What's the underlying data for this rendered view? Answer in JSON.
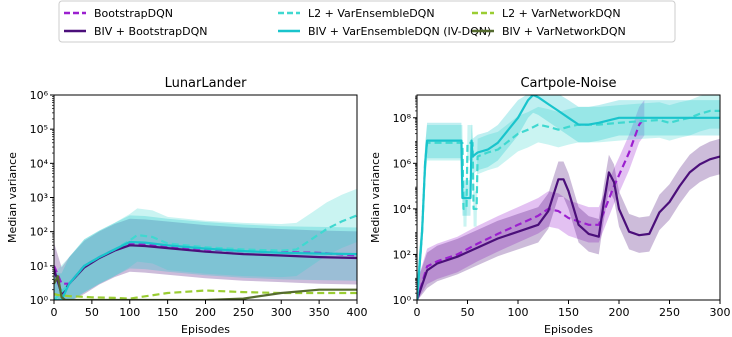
{
  "legend": {
    "placement": "top-center",
    "entries": [
      {
        "label": "BootstrapDQN",
        "color": "#9b1fcf",
        "dash": "dashed"
      },
      {
        "label": "BIV + BootstrapDQN",
        "color": "#4b0f7a",
        "dash": "solid"
      },
      {
        "label": "L2 + VarEnsembleDQN",
        "color": "#3fd8d0",
        "dash": "dashed"
      },
      {
        "label": "BIV + VarEnsembleDQN (IV-DQN)",
        "color": "#19c4cc",
        "dash": "solid"
      },
      {
        "label": "L2 + VarNetworkDQN",
        "color": "#9acd32",
        "dash": "dashed"
      },
      {
        "label": "BIV + VarNetworkDQN",
        "color": "#556b2f",
        "dash": "solid"
      }
    ]
  },
  "chart_data": [
    {
      "type": "line",
      "title": "LunarLander",
      "xlabel": "Episodes",
      "ylabel": "Median variance",
      "xlim": [
        0,
        400
      ],
      "ylim": [
        1,
        1000000
      ],
      "yscale": "log",
      "xticks": [
        "0",
        "50",
        "100",
        "150",
        "200",
        "250",
        "300",
        "350",
        "400"
      ],
      "yticks": [
        "10^0",
        "10^1",
        "10^2",
        "10^3",
        "10^4",
        "10^5",
        "10^6"
      ],
      "grid": false,
      "series": [
        {
          "name": "BootstrapDQN",
          "x": [
            0,
            10,
            20,
            40,
            60,
            80,
            100,
            120,
            150,
            200,
            250,
            300,
            350,
            400
          ],
          "y": [
            10,
            3,
            3,
            10,
            18,
            30,
            45,
            42,
            38,
            30,
            27,
            25,
            24,
            20
          ]
        },
        {
          "name": "BIV + BootstrapDQN",
          "x": [
            0,
            10,
            20,
            40,
            60,
            80,
            100,
            120,
            150,
            200,
            250,
            300,
            350,
            400
          ],
          "y": [
            8,
            1.5,
            3,
            9,
            17,
            28,
            40,
            38,
            33,
            26,
            22,
            20,
            18,
            17
          ]
        },
        {
          "name": "L2 + VarEnsembleDQN",
          "x": [
            0,
            20,
            40,
            60,
            80,
            100,
            110,
            130,
            150,
            200,
            250,
            300,
            320,
            340,
            360,
            380,
            400
          ],
          "y": [
            1,
            3,
            10,
            18,
            30,
            55,
            80,
            70,
            45,
            35,
            30,
            28,
            30,
            60,
            120,
            200,
            300
          ]
        },
        {
          "name": "BIV + VarEnsembleDQN (IV-DQN)",
          "x": [
            0,
            10,
            20,
            40,
            60,
            80,
            100,
            120,
            150,
            200,
            250,
            300,
            350,
            400
          ],
          "y": [
            1,
            1,
            3,
            10,
            18,
            30,
            50,
            48,
            40,
            32,
            27,
            24,
            23,
            22
          ]
        },
        {
          "name": "L2 + VarNetworkDQN",
          "x": [
            0,
            5,
            20,
            50,
            80,
            100,
            150,
            200,
            250,
            300,
            350,
            400
          ],
          "y": [
            1.5,
            1.4,
            1.3,
            1.2,
            1.15,
            1.1,
            1.6,
            1.9,
            1.7,
            1.6,
            1.6,
            1.6
          ]
        },
        {
          "name": "BIV + VarNetworkDQN",
          "x": [
            0,
            5,
            10,
            15,
            50,
            100,
            150,
            200,
            250,
            300,
            350,
            400
          ],
          "y": [
            3,
            5,
            1.2,
            1,
            1,
            1,
            1,
            1,
            1.1,
            1.6,
            2.0,
            2.0
          ]
        }
      ]
    },
    {
      "type": "line",
      "title": "Cartpole-Noise",
      "xlabel": "Episodes",
      "ylabel": "Median variance",
      "xlim": [
        0,
        300
      ],
      "ylim": [
        1,
        1000000000
      ],
      "yscale": "log",
      "xticks": [
        "0",
        "50",
        "100",
        "150",
        "200",
        "250",
        "300"
      ],
      "yticks": [
        "10^0",
        "10^2",
        "10^4",
        "10^6",
        "10^8"
      ],
      "grid": false,
      "series": [
        {
          "name": "BootstrapDQN",
          "x": [
            0,
            10,
            20,
            40,
            60,
            80,
            100,
            120,
            130,
            140,
            150,
            170,
            180,
            195,
            200,
            210,
            220,
            225
          ],
          "y": [
            1,
            30,
            50,
            100,
            300,
            800,
            2000,
            5000,
            10000,
            8000,
            4000,
            2000,
            2000,
            100000,
            300000,
            3000000,
            50000000,
            100000000
          ]
        },
        {
          "name": "BIV + BootstrapDQN",
          "x": [
            0,
            10,
            20,
            40,
            60,
            80,
            100,
            120,
            130,
            140,
            145,
            150,
            160,
            170,
            180,
            185,
            190,
            195,
            200,
            210,
            220,
            230,
            240,
            250,
            260,
            270,
            280,
            290,
            300
          ],
          "y": [
            1,
            20,
            40,
            80,
            200,
            500,
            1000,
            2000,
            8000,
            200000,
            200000,
            60000,
            2000,
            800,
            600,
            20000,
            400000,
            150000,
            10000,
            1000,
            700,
            800,
            7000,
            20000,
            100000,
            400000,
            900000,
            1500000,
            2000000
          ]
        },
        {
          "name": "L2 + VarEnsembleDQN",
          "x": [
            0,
            5,
            8,
            10,
            12,
            15,
            20,
            30,
            40,
            45,
            46,
            49,
            50,
            55,
            56,
            59,
            60,
            70,
            80,
            100,
            110,
            120,
            130,
            140,
            150,
            160,
            170,
            180,
            200,
            220,
            240,
            250,
            260,
            270,
            280,
            290,
            300
          ],
          "y": [
            1,
            1000,
            1000000,
            8000000,
            8000000,
            8000000,
            8000000,
            8000000,
            8000000,
            8000000,
            10000,
            10000,
            8000000,
            8000000,
            10000,
            10000,
            2000000,
            3000000,
            4000000,
            20000000,
            30000000,
            50000000,
            40000000,
            30000000,
            40000000,
            50000000,
            50000000,
            50000000,
            60000000,
            70000000,
            80000000,
            60000000,
            80000000,
            100000000,
            150000000,
            200000000,
            200000000
          ]
        },
        {
          "name": "BIV + VarEnsembleDQN (IV-DQN)",
          "x": [
            0,
            5,
            8,
            10,
            15,
            20,
            30,
            40,
            44,
            45,
            50,
            53,
            54,
            55,
            60,
            70,
            80,
            100,
            110,
            115,
            120,
            130,
            140,
            150,
            160,
            170,
            180,
            200,
            220,
            240,
            260,
            280,
            300
          ],
          "y": [
            1,
            1000,
            1000000,
            10000000,
            10000000,
            10000000,
            10000000,
            10000000,
            10000000,
            30000,
            30000,
            30000,
            10000000,
            2000000,
            3000000,
            4000000,
            8000000,
            100000000,
            600000000,
            1000000000,
            800000000,
            400000000,
            200000000,
            100000000,
            50000000,
            50000000,
            60000000,
            100000000,
            100000000,
            100000000,
            100000000,
            100000000,
            100000000
          ]
        }
      ]
    }
  ]
}
